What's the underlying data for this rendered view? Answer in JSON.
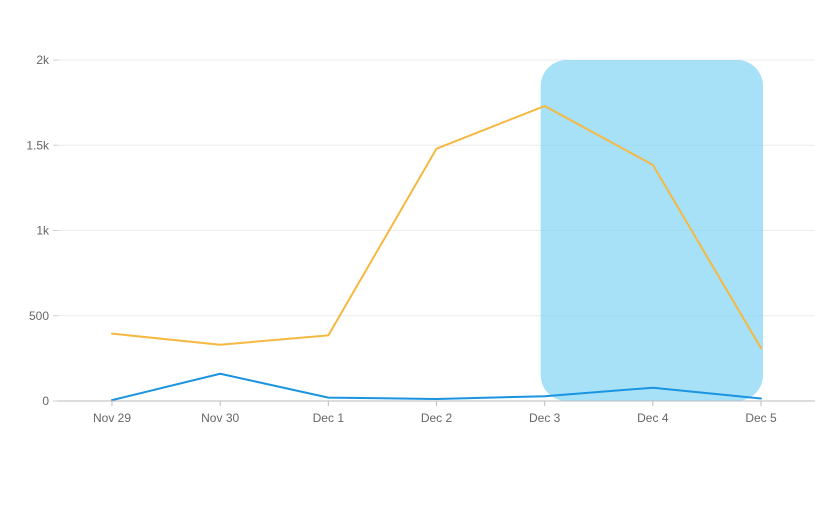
{
  "chart_data": {
    "type": "line",
    "categories": [
      "Nov 29",
      "Nov 30",
      "Dec 1",
      "Dec 2",
      "Dec 3",
      "Dec 4",
      "Dec 5"
    ],
    "series": [
      {
        "color": "#f5b942",
        "values": [
          395,
          330,
          385,
          1480,
          1730,
          1385,
          310
        ]
      },
      {
        "color": "#1a94e0",
        "values": [
          5,
          160,
          20,
          12,
          28,
          78,
          15
        ]
      }
    ],
    "ylim": [
      0,
      2000
    ],
    "yticks": [
      0,
      500,
      1000,
      1500,
      2000
    ],
    "ytick_labels": [
      "0",
      "500",
      "1k",
      "1.5k",
      "2k"
    ],
    "grid": true,
    "highlight": {
      "from": "Dec 3",
      "to": "Dec 5",
      "color": "#7dd3f5"
    }
  }
}
